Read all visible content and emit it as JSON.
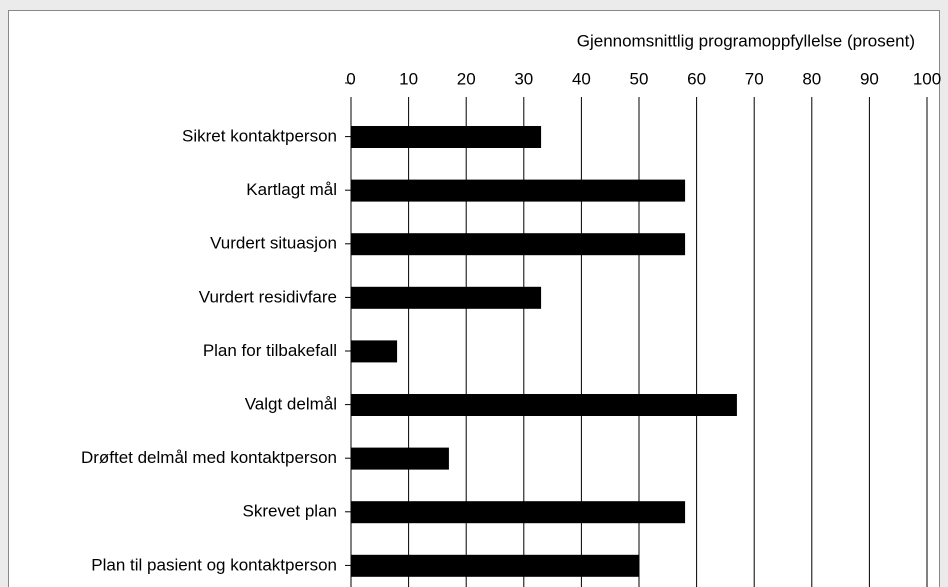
{
  "chart_data": {
    "type": "bar",
    "orientation": "horizontal",
    "title": "Gjennomsnittlig programoppfyllelse (prosent)",
    "categories": [
      "Sikret kontaktperson",
      "Kartlagt mål",
      "Vurdert situasjon",
      "Vurdert residivfare",
      "Plan for tilbakefall",
      "Valgt delmål",
      "Drøftet delmål med kontaktperson",
      "Skrevet plan",
      "Plan til pasient og kontaktperson"
    ],
    "values": [
      33,
      58,
      58,
      33,
      8,
      67,
      17,
      58,
      50
    ],
    "color": "#000000",
    "xlim": [
      0,
      100
    ],
    "xticks": [
      0,
      10,
      20,
      30,
      40,
      50,
      60,
      70,
      80,
      90,
      100
    ],
    "grid": true
  }
}
